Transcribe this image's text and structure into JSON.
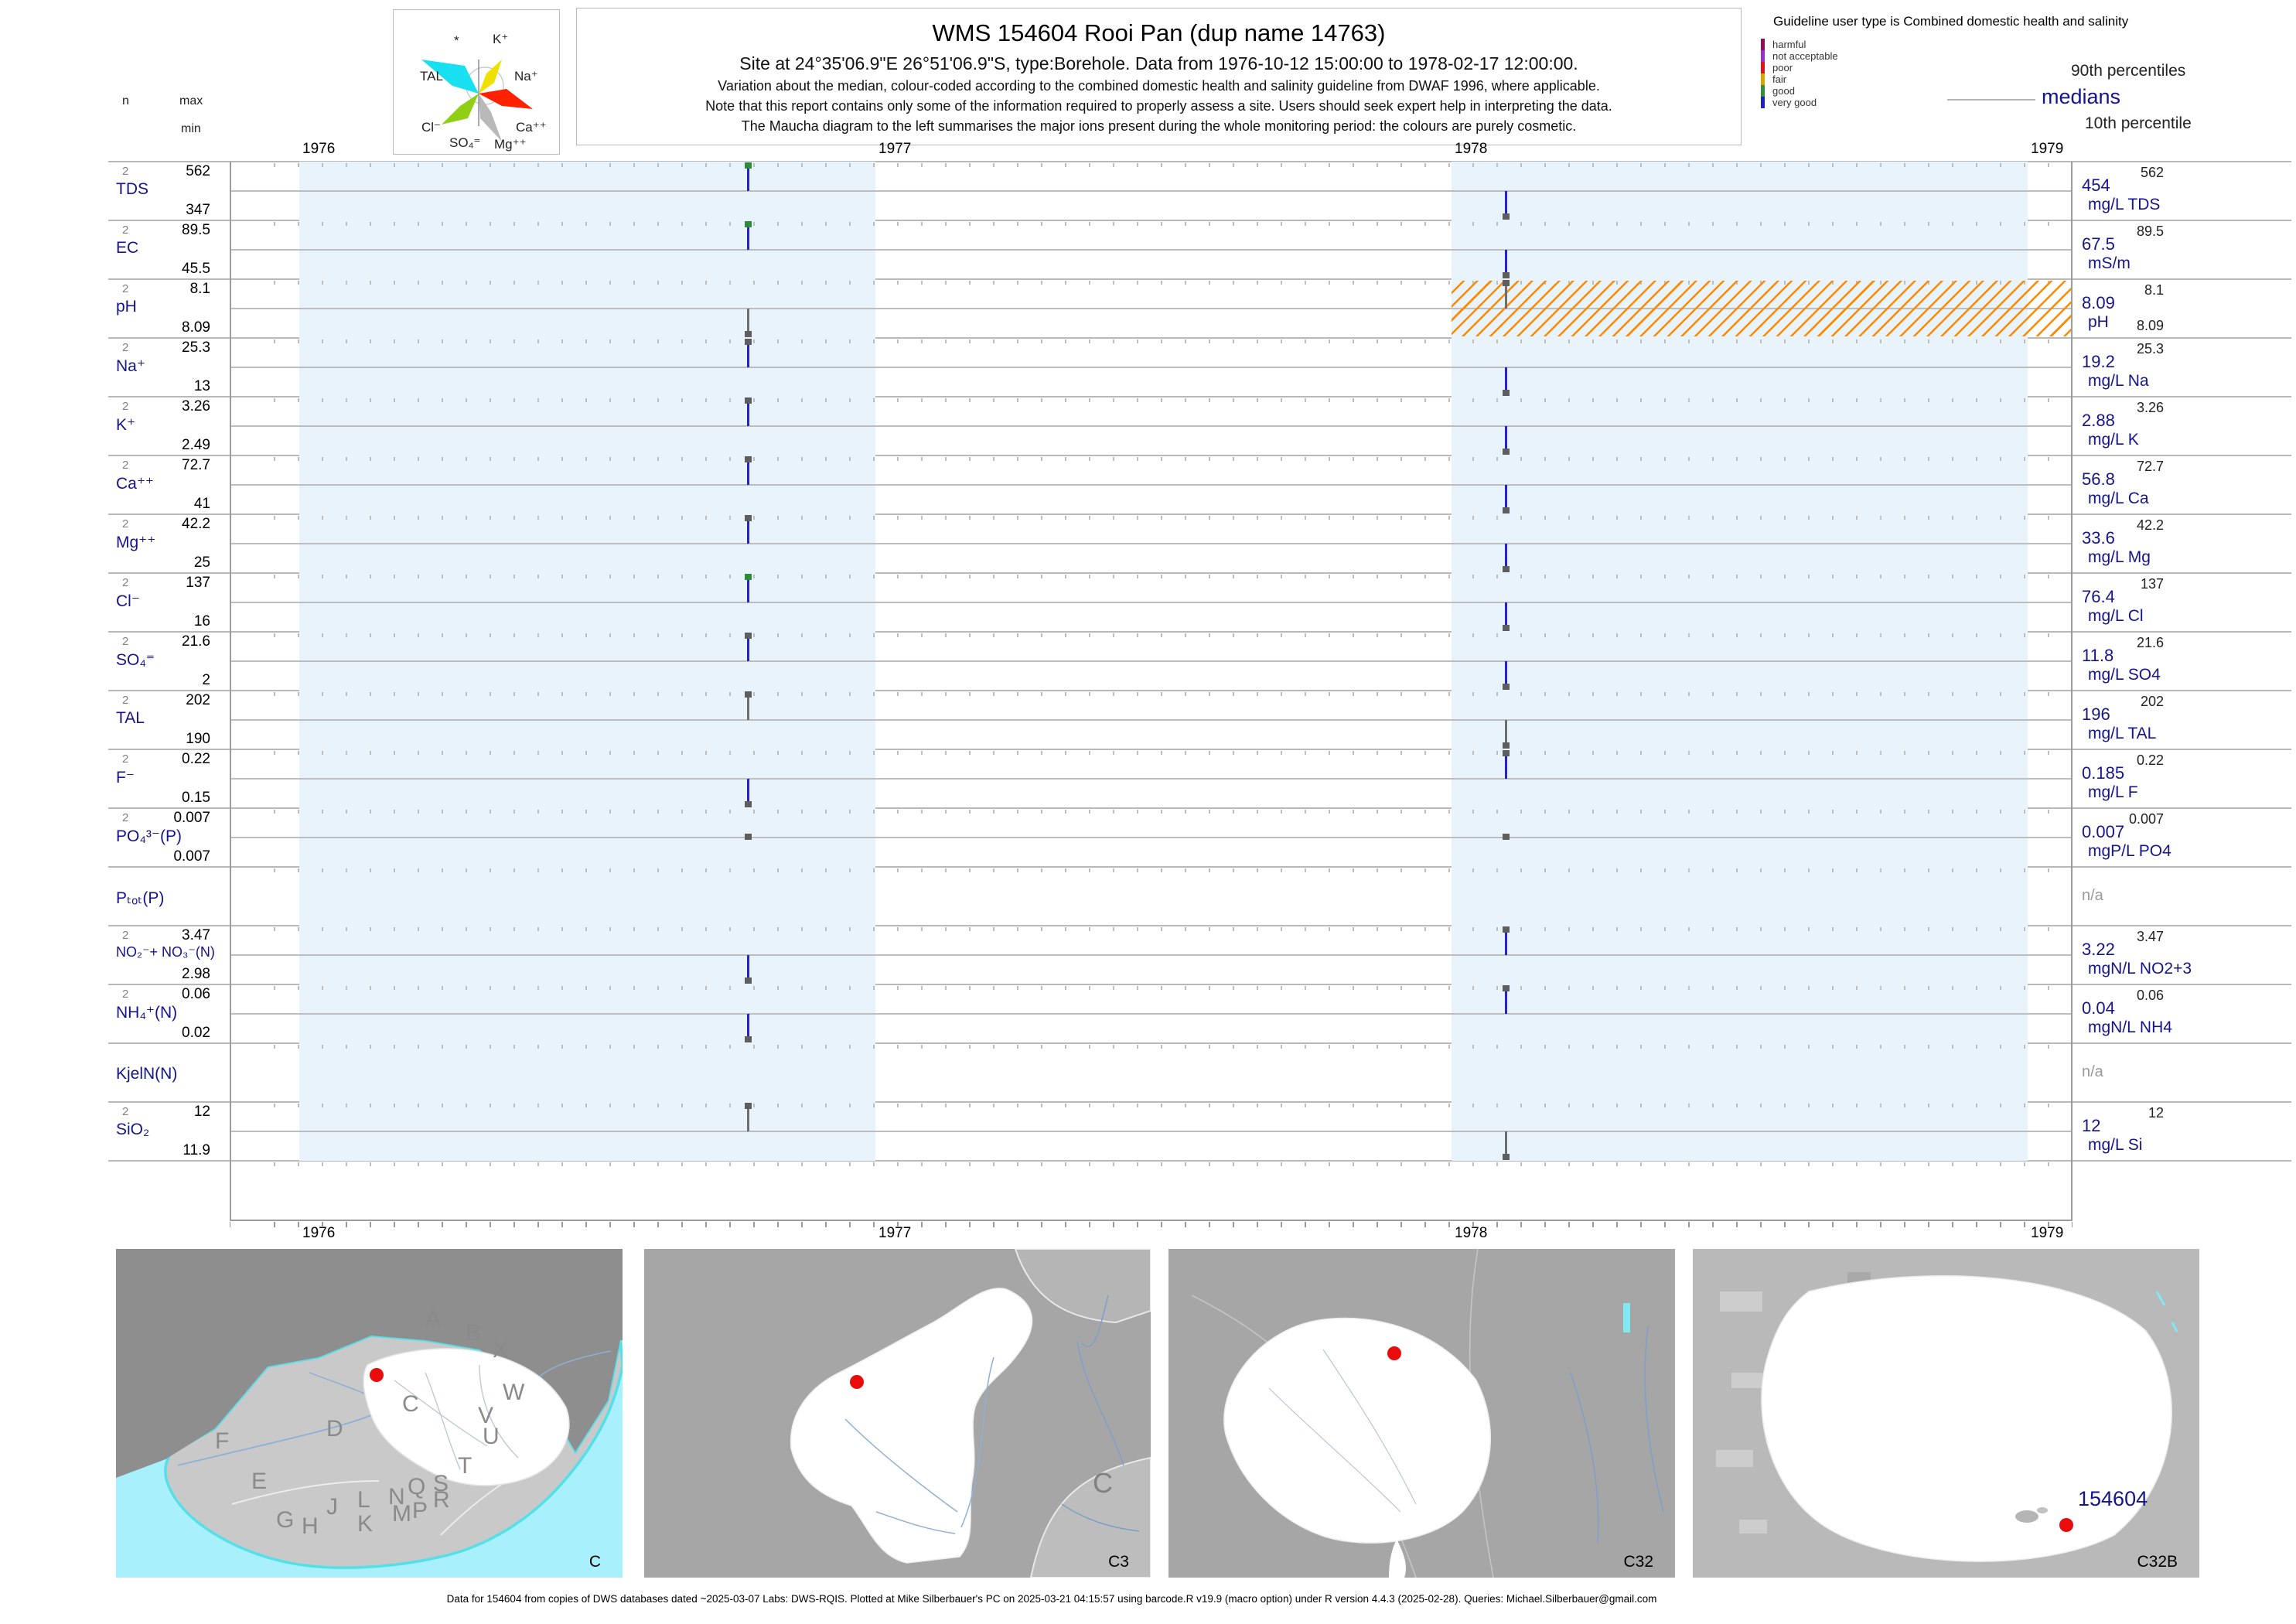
{
  "header": {
    "title": "WMS 154604  Rooi Pan (dup name 14763)",
    "subtitle": "Site at 24°35'06.9\"E 26°51'06.9\"S, type:Borehole.  Data from 1976-10-12 15:00:00 to 1978-02-17 12:00:00.",
    "note1": "Variation about the median,  colour-coded according to the combined domestic health and salinity guideline from DWAF 1996, where applicable.",
    "note2": "Note that this report contains only some of the information required to properly assess a site. Users should seek expert help in interpreting the data.",
    "note3": "The Maucha diagram to the left summarises the major ions present during the whole monitoring period: the colours are purely cosmetic."
  },
  "stats_header": {
    "n": "n",
    "max": "max",
    "min": "min"
  },
  "maucha": {
    "ion_labels": [
      "*",
      "K⁺",
      "TAL",
      "Na⁺",
      "Cl⁻",
      "Ca⁺⁺",
      "SO₄⁼",
      "Mg⁺⁺"
    ]
  },
  "guideline": {
    "title": "Guideline user type is Combined domestic health and salinity",
    "classes": [
      {
        "label": "harmful",
        "color": "#8c1152"
      },
      {
        "label": "not acceptable",
        "color": "#9a30c9"
      },
      {
        "label": "poor",
        "color": "#e01020"
      },
      {
        "label": "fair",
        "color": "#d7a500"
      },
      {
        "label": "good",
        "color": "#2f8f3a"
      },
      {
        "label": "very good",
        "color": "#2020c0"
      }
    ],
    "p90_label": "90th percentiles",
    "median_label": "medians",
    "p10_label": "10th percentile"
  },
  "chart_data": {
    "type": "line",
    "x_years": [
      "1976",
      "1977",
      "1978",
      "1979"
    ],
    "shaded_years": [
      "1976",
      "1978"
    ],
    "sample_dates": [
      "1976-10-12 15:00:00",
      "1978-02-17 12:00:00"
    ],
    "band_color": "#e8f3fb",
    "hatch_color": "#ff8a00",
    "rows": [
      {
        "param": "TDS",
        "n": "2",
        "max": "562",
        "min": "347",
        "median": "454",
        "p90": "562",
        "unit": "mg/L TDS",
        "line": "blue",
        "samples": [
          {
            "value": "562",
            "pos": "max",
            "marker": "good"
          },
          {
            "value": "347",
            "pos": "min",
            "marker": "plain"
          }
        ]
      },
      {
        "param": "EC",
        "n": "2",
        "max": "89.5",
        "min": "45.5",
        "median": "67.5",
        "p90": "89.5",
        "unit": "mS/m",
        "line": "blue",
        "samples": [
          {
            "value": "89.5",
            "pos": "max",
            "marker": "good"
          },
          {
            "value": "45.5",
            "pos": "min",
            "marker": "plain"
          }
        ]
      },
      {
        "param": "pH",
        "n": "2",
        "max": "8.1",
        "min": "8.09",
        "median": "8.09",
        "p90": "8.1",
        "p10": "8.09",
        "unit": "pH",
        "line": "gray",
        "hatch_from": "1978",
        "samples": [
          {
            "value": "8.09",
            "pos": "min",
            "marker": "plain"
          },
          {
            "value": "8.1",
            "pos": "max",
            "marker": "plain"
          }
        ]
      },
      {
        "param": "Na⁺",
        "n": "2",
        "max": "25.3",
        "min": "13",
        "median": "19.2",
        "p90": "25.3",
        "unit": "mg/L Na",
        "line": "blue",
        "samples": [
          {
            "value": "25.3",
            "pos": "max",
            "marker": "plain"
          },
          {
            "value": "13",
            "pos": "min",
            "marker": "plain"
          }
        ]
      },
      {
        "param": "K⁺",
        "n": "2",
        "max": "3.26",
        "min": "2.49",
        "median": "2.88",
        "p90": "3.26",
        "unit": "mg/L K",
        "line": "blue",
        "samples": [
          {
            "value": "3.26",
            "pos": "max",
            "marker": "plain"
          },
          {
            "value": "2.49",
            "pos": "min",
            "marker": "plain"
          }
        ]
      },
      {
        "param": "Ca⁺⁺",
        "n": "2",
        "max": "72.7",
        "min": "41",
        "median": "56.8",
        "p90": "72.7",
        "unit": "mg/L Ca",
        "line": "blue",
        "samples": [
          {
            "value": "72.7",
            "pos": "max",
            "marker": "plain"
          },
          {
            "value": "41",
            "pos": "min",
            "marker": "plain"
          }
        ]
      },
      {
        "param": "Mg⁺⁺",
        "n": "2",
        "max": "42.2",
        "min": "25",
        "median": "33.6",
        "p90": "42.2",
        "unit": "mg/L Mg",
        "line": "blue",
        "samples": [
          {
            "value": "42.2",
            "pos": "max",
            "marker": "plain"
          },
          {
            "value": "25",
            "pos": "min",
            "marker": "plain"
          }
        ]
      },
      {
        "param": "Cl⁻",
        "n": "2",
        "max": "137",
        "min": "16",
        "median": "76.4",
        "p90": "137",
        "unit": "mg/L Cl",
        "line": "blue",
        "samples": [
          {
            "value": "137",
            "pos": "max",
            "marker": "good"
          },
          {
            "value": "16",
            "pos": "min",
            "marker": "plain"
          }
        ]
      },
      {
        "param": "SO₄⁼",
        "n": "2",
        "max": "21.6",
        "min": "2",
        "median": "11.8",
        "p90": "21.6",
        "unit": "mg/L SO4",
        "line": "blue",
        "samples": [
          {
            "value": "21.6",
            "pos": "max",
            "marker": "plain"
          },
          {
            "value": "2",
            "pos": "min",
            "marker": "plain"
          }
        ]
      },
      {
        "param": "TAL",
        "n": "2",
        "max": "202",
        "min": "190",
        "median": "196",
        "p90": "202",
        "unit": "mg/L TAL",
        "line": "gray",
        "samples": [
          {
            "value": "202",
            "pos": "max",
            "marker": "plain"
          },
          {
            "value": "190",
            "pos": "min",
            "marker": "plain"
          }
        ]
      },
      {
        "param": "F⁻",
        "n": "2",
        "max": "0.22",
        "min": "0.15",
        "median": "0.185",
        "p90": "0.22",
        "unit": "mg/L F",
        "line": "blue",
        "samples": [
          {
            "value": "0.15",
            "pos": "min",
            "marker": "plain"
          },
          {
            "value": "0.22",
            "pos": "max",
            "marker": "plain"
          }
        ]
      },
      {
        "param": "PO₄³⁻(P)",
        "n": "2",
        "max": "0.007",
        "min": "0.007",
        "median": "0.007",
        "p90": "0.007",
        "unit": "mgP/L PO4",
        "line": "blue",
        "samples": [
          {
            "value": "0.007",
            "pos": "median",
            "marker": "plain"
          },
          {
            "value": "0.007",
            "pos": "median",
            "marker": "plain"
          }
        ]
      },
      {
        "param": "Pₜₒₜ(P)",
        "na": "n/a"
      },
      {
        "param": "NO₂⁻+ NO₃⁻(N)",
        "n": "2",
        "max": "3.47",
        "min": "2.98",
        "median": "3.22",
        "p90": "3.47",
        "unit": "mgN/L NO2+3",
        "line": "blue",
        "samples": [
          {
            "value": "2.98",
            "pos": "min",
            "marker": "plain"
          },
          {
            "value": "3.47",
            "pos": "max",
            "marker": "plain"
          }
        ]
      },
      {
        "param": "NH₄⁺(N)",
        "n": "2",
        "max": "0.06",
        "min": "0.02",
        "median": "0.04",
        "p90": "0.06",
        "unit": "mgN/L NH4",
        "line": "blue",
        "samples": [
          {
            "value": "0.02",
            "pos": "min",
            "marker": "plain"
          },
          {
            "value": "0.06",
            "pos": "max",
            "marker": "plain"
          }
        ]
      },
      {
        "param": "KjelN(N)",
        "na": "n/a"
      },
      {
        "param": "SiO₂",
        "n": "2",
        "max": "12",
        "min": "11.9",
        "median": "12",
        "p90": "12",
        "unit": "mg/L Si",
        "line": "gray",
        "samples": [
          {
            "value": "12",
            "pos": "max",
            "marker": "plain"
          },
          {
            "value": "11.9",
            "pos": "min",
            "marker": "plain"
          }
        ]
      }
    ]
  },
  "maps": {
    "panels": [
      {
        "code": "C",
        "region_letters": [
          "A",
          "B",
          "X",
          "W",
          "C",
          "V",
          "U",
          "D",
          "T",
          "F",
          "E",
          "S",
          "Q",
          "R",
          "L",
          "N",
          "J",
          "M",
          "P",
          "G",
          "H",
          "K"
        ]
      },
      {
        "code": "C3",
        "big_letter": "C"
      },
      {
        "code": "C32"
      },
      {
        "code": "C32B",
        "site_label": "154604"
      }
    ]
  },
  "footer": {
    "text": "Data for 154604 from copies of DWS databases dated ~2025-03-07 Labs: DWS-RQIS. Plotted at Mike Silberbauer's PC on 2025-03-21 04:15:57 using barcode.R v19.9 (macro option) under R version 4.4.3 (2025-02-28). Queries: Michael.Silberbauer@gmail.com"
  }
}
